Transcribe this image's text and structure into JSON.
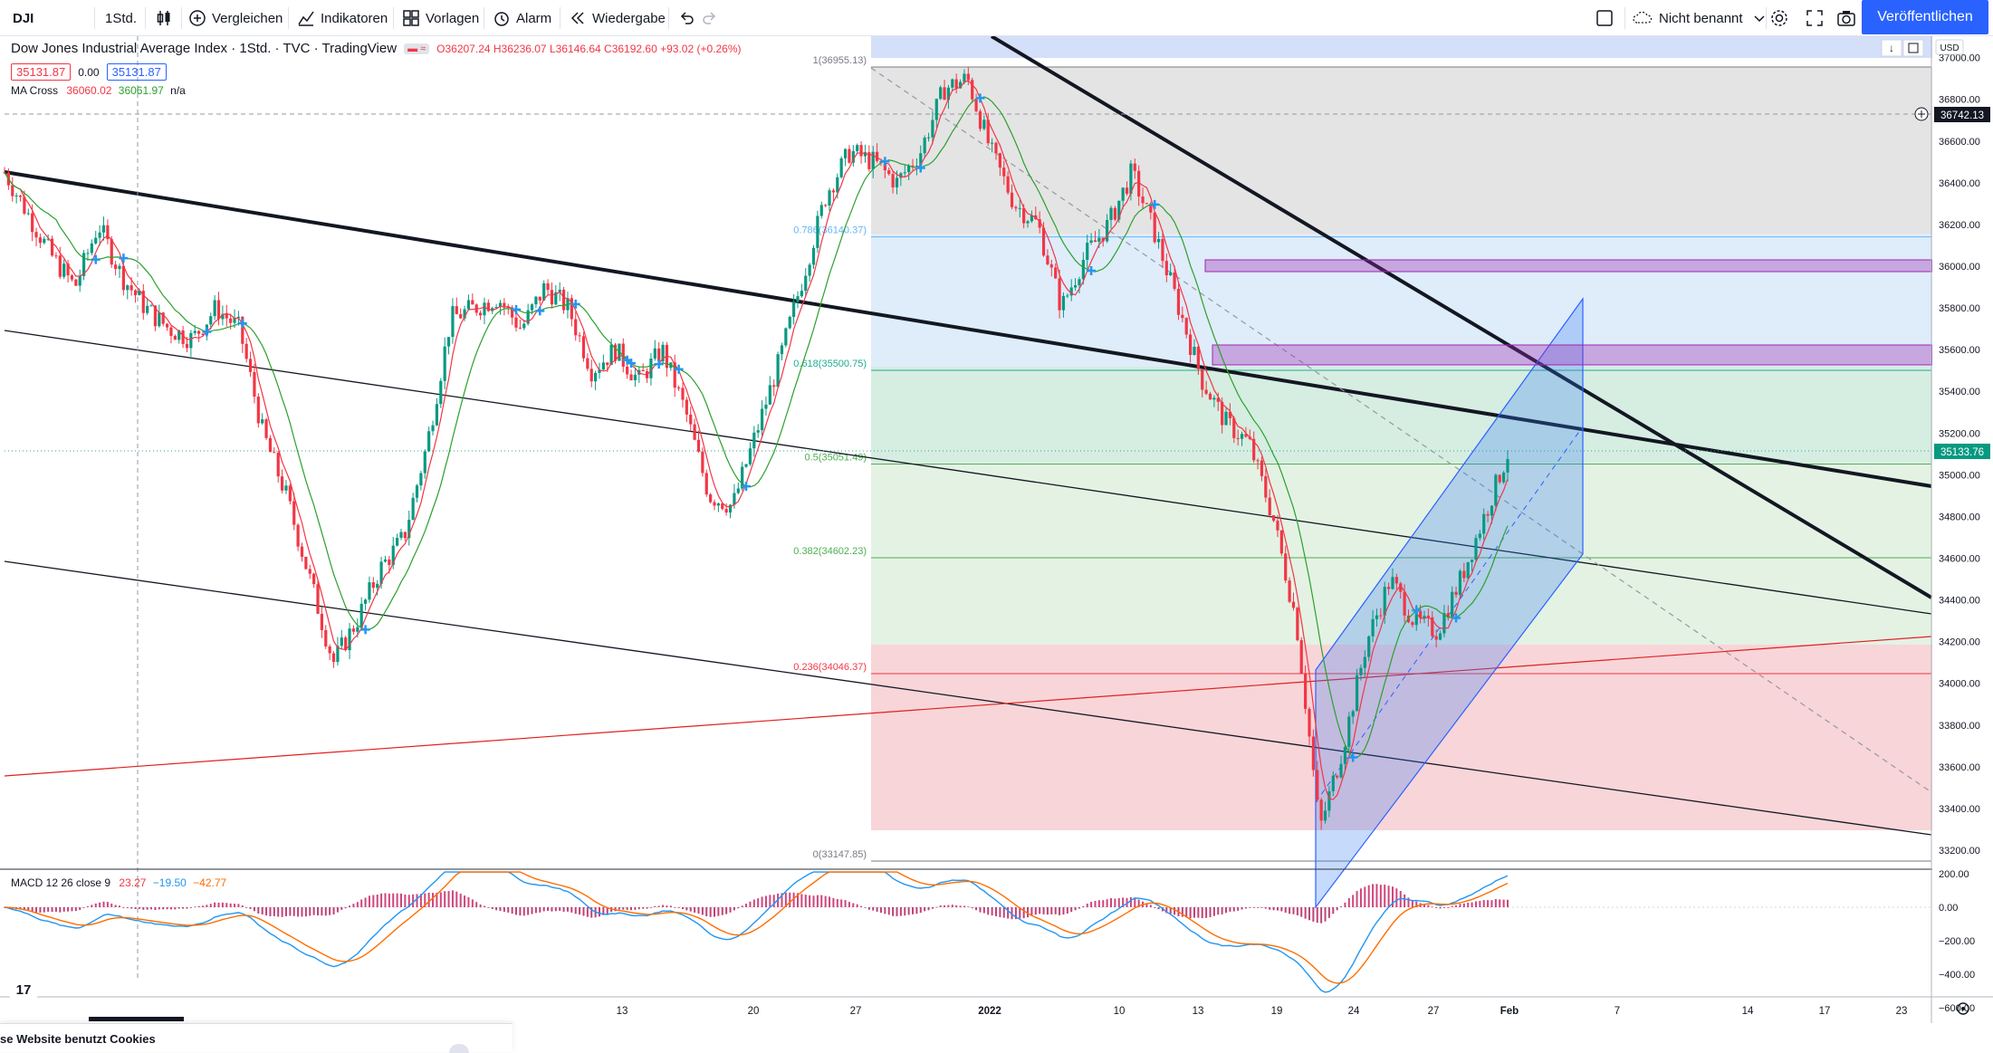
{
  "toolbar": {
    "symbol": "DJI",
    "interval": "1Std.",
    "compare": "Vergleichen",
    "indicators": "Indikatoren",
    "templates": "Vorlagen",
    "alert": "Alarm",
    "replay": "Wiedergabe",
    "layout_name": "Nicht benannt",
    "publish": "Veröffentlichen"
  },
  "legend": {
    "title": "Dow Jones Industrial Average Index · 1Std. · TVC · TradingView",
    "o": "O36207.24",
    "h": "H36236.07",
    "l": "L36146.64",
    "c": "C36192.60",
    "chg": "+93.02 (+0.26%)",
    "sell_price": "35131.87",
    "spread": "0.00",
    "buy_price": "35131.87",
    "ma_name": "MA Cross",
    "ma_v1": "36060.02",
    "ma_v2": "36061.97",
    "ma_v3": "n/a",
    "macd_name": "MACD 12 26 close 9",
    "macd_v1": "23.27",
    "macd_v2": "−19.50",
    "macd_v3": "−42.77"
  },
  "price_axis": {
    "currency": "USD",
    "current_price": "35133.76",
    "crosshair_price": "36742.13"
  },
  "fib_labels": [
    "1(36955.13)",
    "0.786(36140.37)",
    "0.618(35500.75)",
    "0.5(35051.49)",
    "0.382(34602.23)",
    "0.236(34046.37)",
    "0(33147.85)"
  ],
  "time_axis": [
    "13",
    "20",
    "27",
    "2022",
    "10",
    "13",
    "19",
    "24",
    "27",
    "Feb",
    "7",
    "14",
    "17",
    "23"
  ],
  "macd_axis": [
    "200.00",
    "0.00",
    "−200.00",
    "−400.00",
    "−600.00"
  ],
  "cookie_text": "se Website benutzt Cookies",
  "chart_data": {
    "type": "candlestick",
    "symbol": "DJI",
    "timeframe": "1Std.",
    "y_ticks": [
      37000,
      36800,
      36600,
      36400,
      36200,
      36000,
      35800,
      35600,
      35400,
      35200,
      35000,
      34800,
      34600,
      34400,
      34200,
      34000,
      33800,
      33600,
      33400,
      33200
    ],
    "ylim": [
      33100,
      37050
    ],
    "fib_levels": [
      {
        "ratio": "1",
        "price": 36955.13
      },
      {
        "ratio": "0.786",
        "price": 36140.37
      },
      {
        "ratio": "0.618",
        "price": 35500.75
      },
      {
        "ratio": "0.5",
        "price": 35051.49
      },
      {
        "ratio": "0.382",
        "price": 34602.23
      },
      {
        "ratio": "0.236",
        "price": 34046.37
      },
      {
        "ratio": "0",
        "price": 33147.85
      }
    ],
    "price_path": [
      36450,
      36250,
      36050,
      35900,
      36200,
      35950,
      35800,
      35700,
      35650,
      35800,
      35700,
      35200,
      34900,
      34500,
      34100,
      34300,
      34550,
      34700,
      35150,
      35750,
      35800,
      35850,
      35700,
      35900,
      35800,
      35500,
      35600,
      35450,
      35600,
      35300,
      34900,
      34850,
      35200,
      35550,
      35950,
      36350,
      36550,
      36500,
      36400,
      36550,
      36850,
      36900,
      36550,
      36300,
      36200,
      35800,
      36050,
      36200,
      36450,
      36150,
      35800,
      35450,
      35250,
      35150,
      34800,
      34300,
      33300,
      33700,
      34200,
      34500,
      34300,
      34250,
      34500,
      34800,
      35100
    ],
    "macd_ylim": [
      -650,
      220
    ]
  }
}
